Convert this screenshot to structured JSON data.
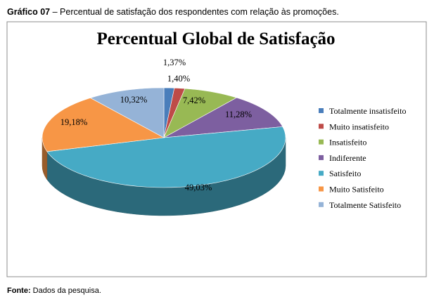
{
  "caption": {
    "label": "Gráfico 07",
    "text": " – Percentual de satisfação dos respondentes com relação às promoções."
  },
  "source": {
    "label": "Fonte:",
    "text": " Dados da pesquisa."
  },
  "chart_data": {
    "type": "pie",
    "title": "Percentual Global de Satisfação",
    "legend_position": "right",
    "style": "3d",
    "categories": [
      "Totalmente insatisfeito",
      "Muito insatisfeito",
      "Insatisfeito",
      "Indiferente",
      "Satisfeito",
      "Muito Satisfeito",
      "Totalmente Satisfeito"
    ],
    "values": [
      1.37,
      1.4,
      7.42,
      11.28,
      49.03,
      19.18,
      10.32
    ],
    "labels": [
      "1,37%",
      "1,40%",
      "7,42%",
      "11,28%",
      "49,03%",
      "19,18%",
      "10,32%"
    ],
    "colors": [
      "#4a7ebb",
      "#be4b48",
      "#98b954",
      "#7d5fa0",
      "#46aac5",
      "#f79646",
      "#95b3d7"
    ]
  }
}
